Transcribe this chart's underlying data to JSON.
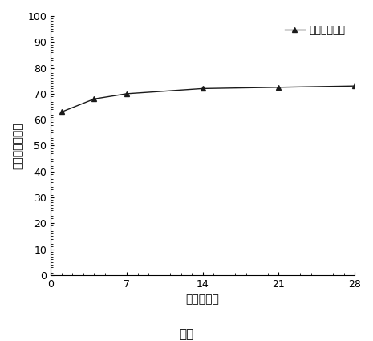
{
  "x": [
    1,
    4,
    7,
    14,
    21,
    28
  ],
  "y": [
    63,
    68,
    70,
    72,
    72.5,
    73
  ],
  "line_color": "#1a1a1a",
  "marker": "^",
  "marker_size": 5,
  "marker_facecolor": "#1a1a1a",
  "legend_label": "製剤番号１０",
  "xlabel": "時間（日）",
  "ylabel": "累積放出（％）",
  "caption": "図８",
  "xlim": [
    0,
    28
  ],
  "ylim": [
    0,
    100
  ],
  "xticks": [
    0,
    7,
    14,
    21,
    28
  ],
  "yticks": [
    0,
    10,
    20,
    30,
    40,
    50,
    60,
    70,
    80,
    90,
    100
  ],
  "background_color": "#ffffff",
  "axis_fontsize": 10,
  "tick_fontsize": 9,
  "legend_fontsize": 9,
  "caption_fontsize": 11
}
